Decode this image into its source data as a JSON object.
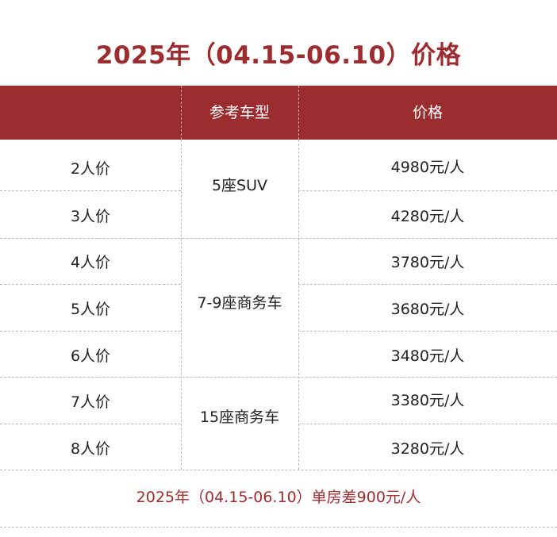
{
  "title": "2025年（04.15-06.10）价格",
  "header": {
    "col1": "",
    "col2": "参考车型",
    "col3": "价格"
  },
  "rows": [
    {
      "people": "2人价",
      "price": "4980元/人"
    },
    {
      "people": "3人价",
      "price": "4280元/人"
    },
    {
      "people": "4人价",
      "price": "3780元/人"
    },
    {
      "people": "5人价",
      "price": "3680元/人"
    },
    {
      "people": "6人价",
      "price": "3480元/人"
    },
    {
      "people": "7人价",
      "price": "3380元/人"
    },
    {
      "people": "8人价",
      "price": "3280元/人"
    }
  ],
  "vehicles": [
    {
      "name": "5座SUV"
    },
    {
      "name": "7-9座商务车"
    },
    {
      "name": "15座商务车"
    }
  ],
  "footer": "2025年（04.15-06.10）单房差900元/人",
  "colors": {
    "accent": "#9b2d30",
    "header_text": "#ffffff"
  }
}
